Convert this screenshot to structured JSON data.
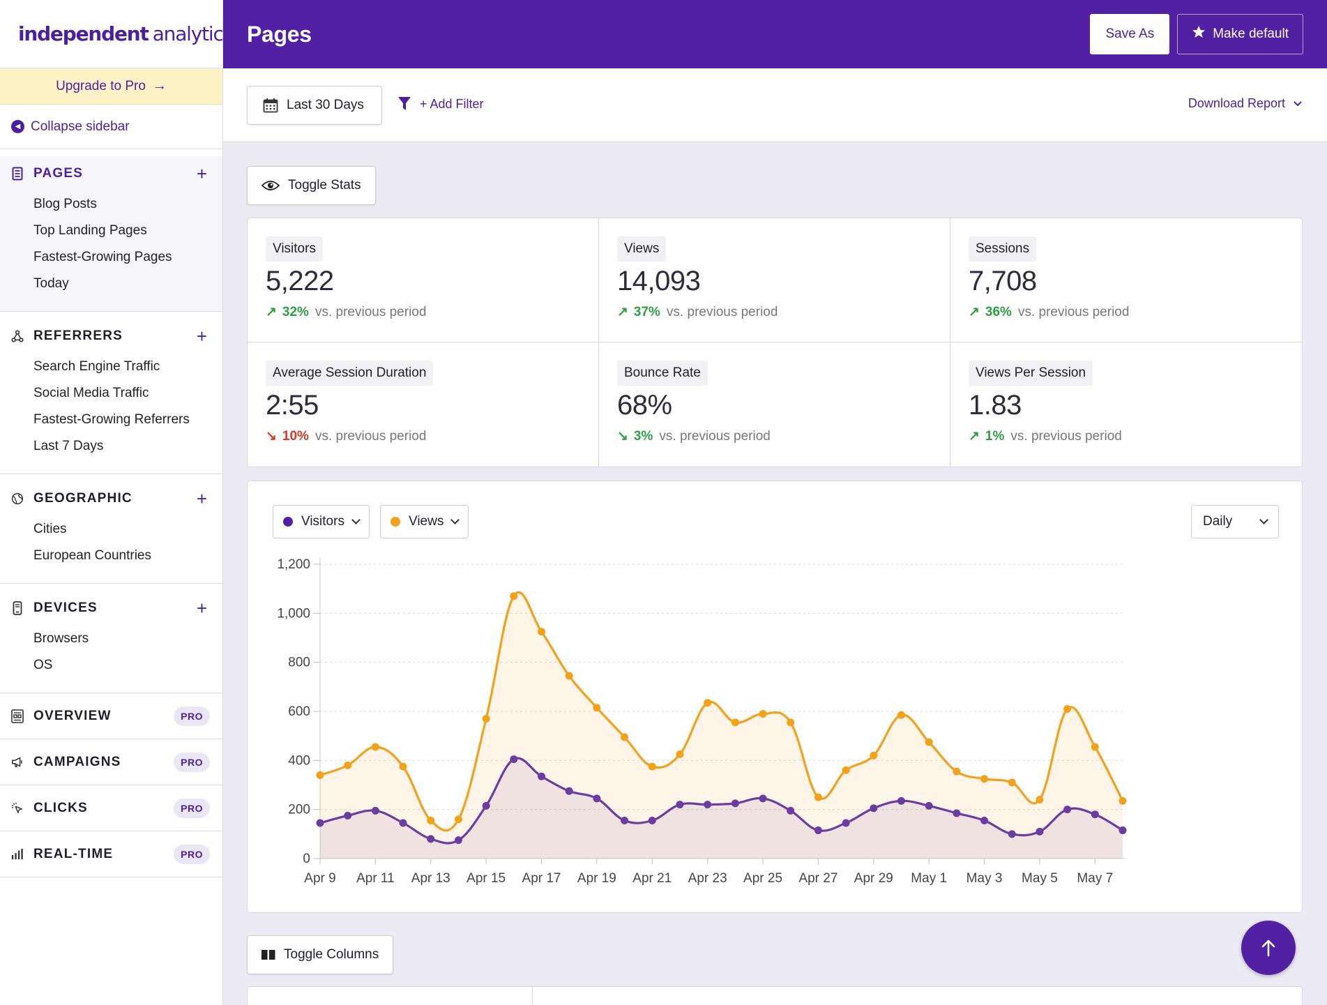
{
  "brand": {
    "logo_bold": "independent",
    "logo_light": "analytics"
  },
  "sidebar": {
    "upgrade": "Upgrade to Pro",
    "collapse": "Collapse sidebar",
    "sections": {
      "pages": {
        "title": "PAGES",
        "items": [
          "Blog Posts",
          "Top Landing Pages",
          "Fastest-Growing Pages",
          "Today"
        ]
      },
      "referrers": {
        "title": "REFERRERS",
        "items": [
          "Search Engine Traffic",
          "Social Media Traffic",
          "Fastest-Growing Referrers",
          "Last 7 Days"
        ]
      },
      "geographic": {
        "title": "GEOGRAPHIC",
        "items": [
          "Cities",
          "European Countries"
        ]
      },
      "devices": {
        "title": "DEVICES",
        "items": [
          "Browsers",
          "OS"
        ]
      }
    },
    "pro_items": [
      {
        "label": "OVERVIEW",
        "badge": "PRO",
        "icon": "overview-icon"
      },
      {
        "label": "CAMPAIGNS",
        "badge": "PRO",
        "icon": "megaphone-icon"
      },
      {
        "label": "CLICKS",
        "badge": "PRO",
        "icon": "cursor-click-icon"
      },
      {
        "label": "REAL-TIME",
        "badge": "PRO",
        "icon": "bar-chart-icon"
      }
    ]
  },
  "header": {
    "title": "Pages",
    "save_as": "Save As",
    "make_default": "Make default"
  },
  "toolbar": {
    "date_range": "Last 30 Days",
    "add_filter": "+ Add Filter",
    "download": "Download Report"
  },
  "toggle_stats": "Toggle Stats",
  "toggle_columns": "Toggle Columns",
  "stats": [
    {
      "label": "Visitors",
      "value": "5,222",
      "change": "32%",
      "direction": "up",
      "suffix": "vs. previous period"
    },
    {
      "label": "Views",
      "value": "14,093",
      "change": "37%",
      "direction": "up",
      "suffix": "vs. previous period"
    },
    {
      "label": "Sessions",
      "value": "7,708",
      "change": "36%",
      "direction": "up",
      "suffix": "vs. previous period"
    },
    {
      "label": "Average Session Duration",
      "value": "2:55",
      "change": "10%",
      "direction": "down-bad",
      "suffix": "vs. previous period"
    },
    {
      "label": "Bounce Rate",
      "value": "68%",
      "change": "3%",
      "direction": "down-good",
      "suffix": "vs. previous period"
    },
    {
      "label": "Views Per Session",
      "value": "1.83",
      "change": "1%",
      "direction": "up",
      "suffix": "vs. previous period"
    }
  ],
  "chart_controls": {
    "metric1": "Visitors",
    "metric2": "Views",
    "interval": "Daily"
  },
  "colors": {
    "brand": "#5220a3",
    "visitors": "#6a3ea1",
    "views": "#f2a11a",
    "up": "#2ea043",
    "down": "#d63a22"
  },
  "chart_data": {
    "type": "area",
    "x": [
      "Apr 9",
      "Apr 10",
      "Apr 11",
      "Apr 12",
      "Apr 13",
      "Apr 14",
      "Apr 15",
      "Apr 16",
      "Apr 17",
      "Apr 18",
      "Apr 19",
      "Apr 20",
      "Apr 21",
      "Apr 22",
      "Apr 23",
      "Apr 24",
      "Apr 25",
      "Apr 26",
      "Apr 27",
      "Apr 28",
      "Apr 29",
      "Apr 30",
      "May 1",
      "May 2",
      "May 3",
      "May 4",
      "May 5",
      "May 6",
      "May 7",
      "May 8"
    ],
    "xticks": [
      "Apr 9",
      "Apr 11",
      "Apr 13",
      "Apr 15",
      "Apr 17",
      "Apr 19",
      "Apr 21",
      "Apr 23",
      "Apr 25",
      "Apr 27",
      "Apr 29",
      "May 1",
      "May 3",
      "May 5",
      "May 7"
    ],
    "yticks": [
      "0",
      "200",
      "400",
      "600",
      "800",
      "1,000",
      "1,200"
    ],
    "ylim": [
      0,
      1200
    ],
    "grid": true,
    "series": [
      {
        "name": "Views",
        "color": "#f2a11a",
        "values": [
          340,
          380,
          455,
          375,
          155,
          160,
          570,
          1070,
          925,
          745,
          615,
          495,
          375,
          425,
          635,
          555,
          590,
          555,
          250,
          360,
          420,
          585,
          475,
          355,
          325,
          310,
          240,
          610,
          455,
          235
        ]
      },
      {
        "name": "Visitors",
        "color": "#6a3ea1",
        "values": [
          145,
          175,
          195,
          145,
          80,
          75,
          215,
          405,
          335,
          275,
          245,
          155,
          155,
          220,
          220,
          225,
          245,
          195,
          115,
          145,
          205,
          235,
          215,
          185,
          155,
          100,
          110,
          200,
          180,
          115
        ]
      }
    ]
  }
}
